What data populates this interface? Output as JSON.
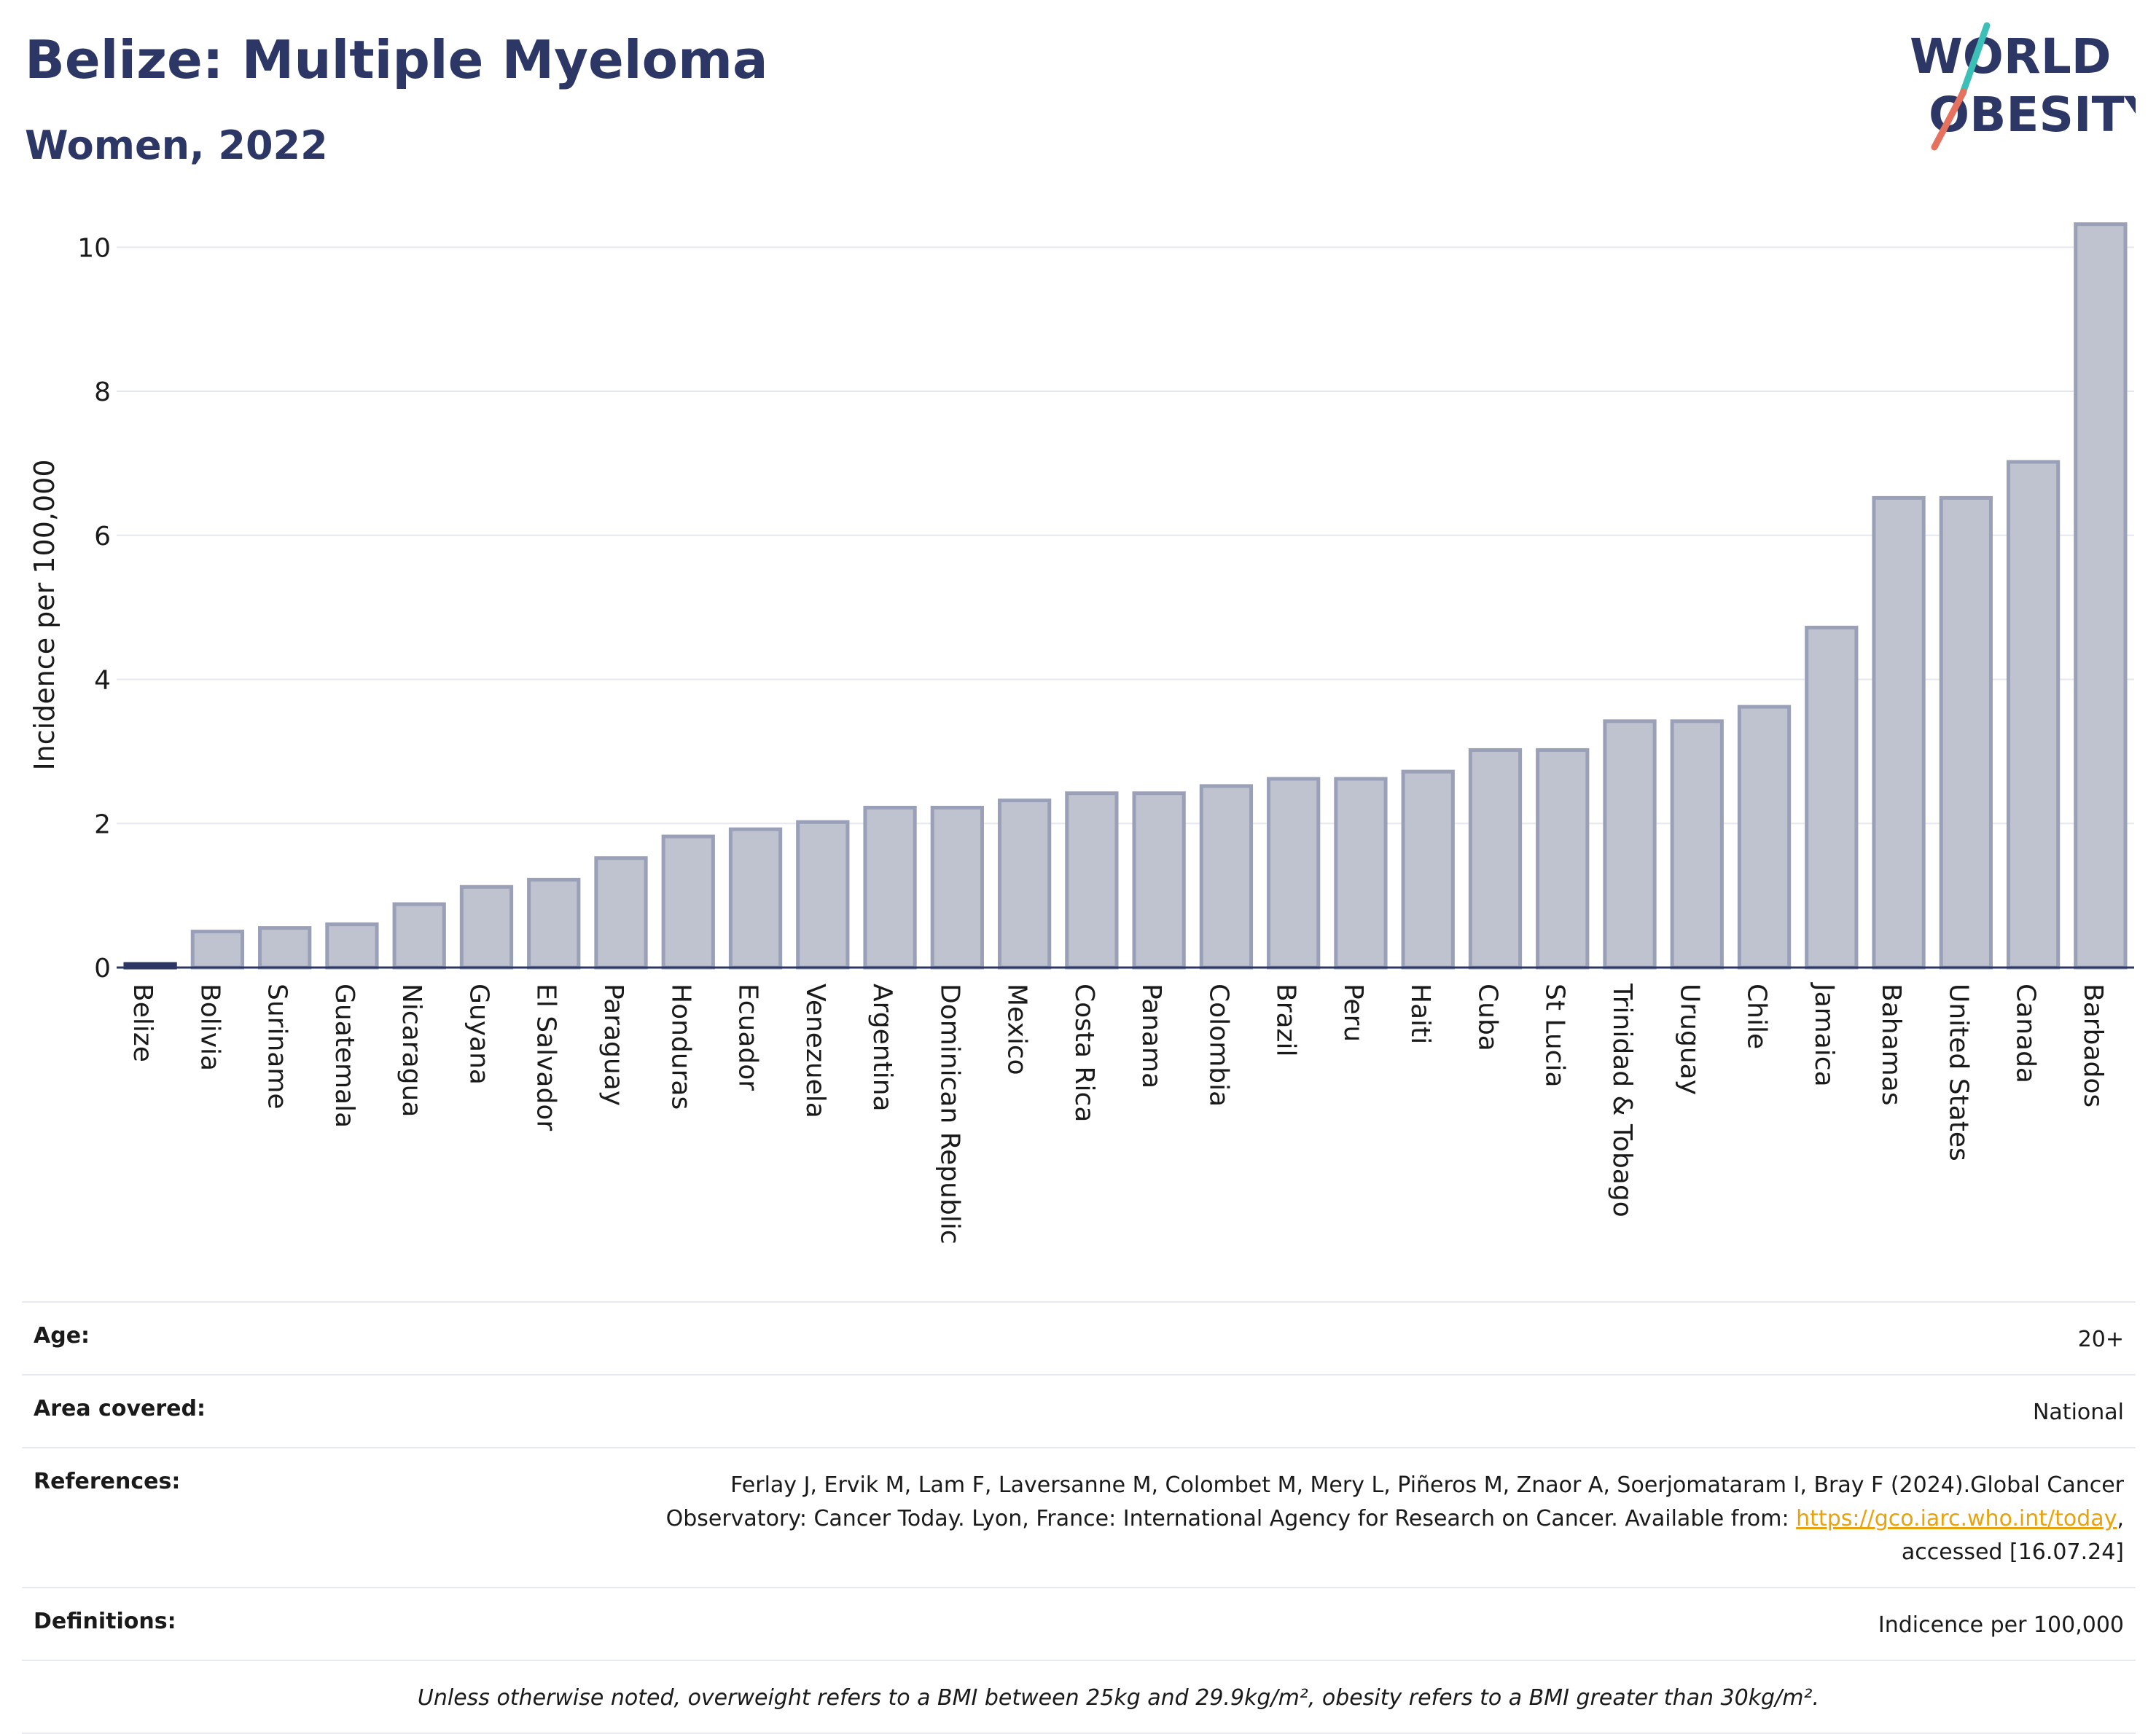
{
  "title": "Belize: Multiple Myeloma",
  "subtitle": "Women, 2022",
  "logo": {
    "line1": "WORLD",
    "line2": "OBESITY"
  },
  "colors": {
    "title": "#2d3766",
    "bar_fill": "#bfc3d0",
    "bar_stroke": "#9aa0b8",
    "highlight": "#2d3766",
    "grid": "#e6e8f0",
    "link": "#e8a20c",
    "logo_teal": "#3bbfb6",
    "logo_coral": "#e5715f"
  },
  "chart_data": {
    "type": "bar",
    "ylabel": "Incidence per 100,000",
    "ylim": [
      0,
      10.6
    ],
    "yticks": [
      0,
      2,
      4,
      6,
      8,
      10
    ],
    "grid": true,
    "highlight": "Belize",
    "categories": [
      "Belize",
      "Bolivia",
      "Suriname",
      "Guatemala",
      "Nicaragua",
      "Guyana",
      "El Salvador",
      "Paraguay",
      "Honduras",
      "Ecuador",
      "Venezuela",
      "Argentina",
      "Dominican Republic",
      "Mexico",
      "Costa Rica",
      "Panama",
      "Colombia",
      "Brazil",
      "Peru",
      "Haiti",
      "Cuba",
      "St Lucia",
      "Trinidad & Tobago",
      "Uruguay",
      "Chile",
      "Jamaica",
      "Bahamas",
      "United States",
      "Canada",
      "Barbados"
    ],
    "values": [
      0.05,
      0.5,
      0.55,
      0.6,
      0.88,
      1.12,
      1.22,
      1.52,
      1.82,
      1.92,
      2.02,
      2.22,
      2.22,
      2.32,
      2.42,
      2.42,
      2.52,
      2.62,
      2.62,
      2.72,
      3.02,
      3.02,
      3.42,
      3.42,
      3.62,
      4.72,
      6.52,
      6.52,
      7.02,
      10.32
    ]
  },
  "meta": {
    "age_label": "Age:",
    "age_value": "20+",
    "area_label": "Area covered:",
    "area_value": "National",
    "references_label": "References:",
    "references_text1": "Ferlay J, Ervik M, Lam F, Laversanne M, Colombet M, Mery L, Piñeros M, Znaor A, Soerjomataram I, Bray F (2024).Global Cancer",
    "references_text2": "Observatory: Cancer Today. Lyon, France: International Agency for Research on Cancer. Available from:",
    "references_link": "https://gco.iarc.who.int/today",
    "references_text3": "accessed [16.07.24]",
    "definitions_label": "Definitions:",
    "definitions_value": "Indicence per 100,000",
    "note": "Unless otherwise noted, overweight refers to a BMI between 25kg and 29.9kg/m², obesity refers to a BMI greater than 30kg/m²."
  }
}
